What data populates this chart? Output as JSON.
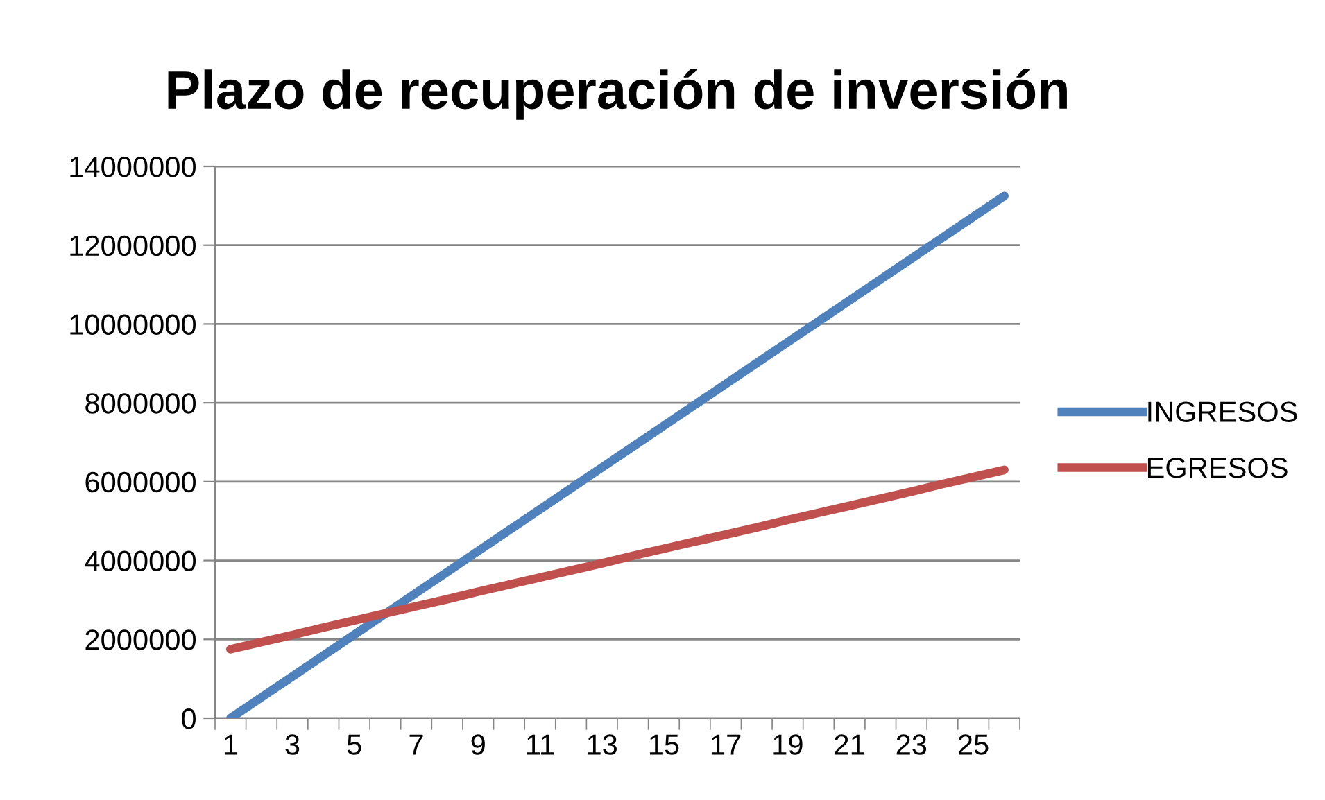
{
  "chart_data": {
    "type": "line",
    "title": "Plazo de recuperación de inversión",
    "categories": [
      "1",
      null,
      "3",
      null,
      "5",
      null,
      "7",
      null,
      "9",
      null,
      "11",
      null,
      "13",
      null,
      "15",
      null,
      "17",
      null,
      "19",
      null,
      "21",
      null,
      "23",
      null,
      "25",
      null
    ],
    "series": [
      {
        "name": "INGRESOS",
        "color": "#4f81bd",
        "values": [
          0,
          530000,
          1060000,
          1590000,
          2120000,
          2650000,
          3180000,
          3710000,
          4240000,
          4770000,
          5300000,
          5830000,
          6360000,
          6890000,
          7420000,
          7950000,
          8480000,
          9010000,
          9540000,
          10070000,
          10600000,
          11130000,
          11660000,
          12190000,
          12720000,
          13250000
        ]
      },
      {
        "name": "EGRESOS",
        "color": "#c0504d",
        "values": [
          1750000,
          1930000,
          2110000,
          2300000,
          2480000,
          2660000,
          2840000,
          3020000,
          3210000,
          3390000,
          3570000,
          3750000,
          3930000,
          4120000,
          4300000,
          4480000,
          4660000,
          4840000,
          5030000,
          5210000,
          5390000,
          5570000,
          5750000,
          5940000,
          6120000,
          6300000
        ]
      }
    ],
    "ylim": [
      0,
      14000000
    ],
    "yticks": [
      0,
      2000000,
      4000000,
      6000000,
      8000000,
      10000000,
      12000000,
      14000000
    ],
    "grid": "y",
    "legend": "right",
    "marker": "none",
    "line_style": "solid"
  }
}
